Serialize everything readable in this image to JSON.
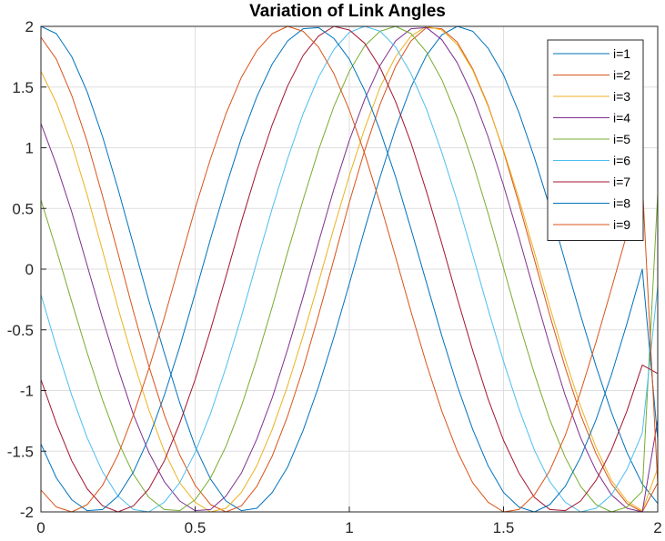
{
  "chart_data": {
    "type": "line",
    "title": "Variation of Link Angles",
    "xlabel": "",
    "ylabel": "",
    "xlim": [
      0,
      2
    ],
    "ylim": [
      -2,
      2
    ],
    "x_ticks": [
      0,
      0.5,
      1,
      1.5,
      2
    ],
    "x_tick_labels": [
      "0",
      "0.5",
      "1",
      "1.5",
      "2"
    ],
    "y_ticks": [
      2,
      1.5,
      1,
      0.5,
      0,
      -0.5,
      -1,
      -1.5,
      -2
    ],
    "y_tick_labels": [
      "2",
      "1.5",
      "1",
      "0.5",
      "0",
      "-0.5",
      "-1",
      "-1.5",
      "-2"
    ],
    "grid": true,
    "legend_location": "top-right",
    "x": [
      0,
      0.05,
      0.1,
      0.15,
      0.2,
      0.25,
      0.3,
      0.35,
      0.4,
      0.45,
      0.5,
      0.55,
      0.6,
      0.65,
      0.7,
      0.75,
      0.8,
      0.85,
      0.9,
      0.95,
      1.0,
      1.05,
      1.1,
      1.15,
      1.2,
      1.25,
      1.3,
      1.35,
      1.4,
      1.45,
      1.5,
      1.55,
      1.6,
      1.65,
      1.7,
      1.75,
      1.8,
      1.85,
      1.9,
      1.95,
      2.0
    ],
    "series": [
      {
        "name": "i=1",
        "color": "#0072BD",
        "values": [
          2.0,
          1.94,
          1.75,
          1.46,
          1.09,
          0.66,
          0.2,
          -0.26,
          -0.69,
          -1.1,
          -1.46,
          -1.73,
          -1.91,
          -1.99,
          -1.97,
          -1.84,
          -1.63,
          -1.33,
          -0.97,
          -0.56,
          -0.12,
          0.33,
          0.76,
          1.16,
          1.5,
          1.76,
          1.93,
          2.0,
          1.96,
          1.82,
          1.6,
          1.29,
          0.92,
          0.51,
          0.06,
          -0.38,
          -0.8,
          -1.18,
          -1.51,
          -1.77,
          -1.93
        ]
      },
      {
        "name": "i=2",
        "color": "#D95319",
        "values": [
          1.91,
          1.73,
          1.43,
          1.05,
          0.6,
          0.13,
          -0.35,
          -0.8,
          -1.2,
          -1.53,
          -1.78,
          -1.94,
          -2.0,
          -1.95,
          -1.79,
          -1.54,
          -1.21,
          -0.82,
          -0.38,
          0.08,
          0.55,
          0.98,
          1.36,
          1.67,
          1.88,
          1.99,
          1.98,
          1.87,
          1.65,
          1.35,
          0.97,
          0.54,
          0.08,
          -0.38,
          -0.81,
          -1.2,
          -1.52,
          -1.77,
          -1.93,
          -2.0,
          -1.76
        ]
      },
      {
        "name": "i=3",
        "color": "#EDB120",
        "values": [
          1.63,
          1.37,
          1.03,
          0.61,
          0.15,
          -0.32,
          -0.76,
          -1.16,
          -1.5,
          -1.76,
          -1.92,
          -2.0,
          -1.97,
          -1.84,
          -1.62,
          -1.32,
          -0.96,
          -0.55,
          -0.11,
          0.34,
          0.77,
          1.16,
          1.5,
          1.75,
          1.92,
          2.0,
          1.97,
          1.85,
          1.64,
          1.34,
          0.98,
          0.58,
          0.14,
          -0.31,
          -0.74,
          -1.13,
          -1.47,
          -1.74,
          -1.91,
          -1.99,
          -1.64
        ]
      },
      {
        "name": "i=4",
        "color": "#7E2F8E",
        "values": [
          1.2,
          0.86,
          0.47,
          0.03,
          -0.41,
          -0.82,
          -1.2,
          -1.51,
          -1.75,
          -1.91,
          -1.99,
          -1.98,
          -1.87,
          -1.68,
          -1.4,
          -1.06,
          -0.66,
          -0.23,
          0.22,
          0.66,
          1.06,
          1.4,
          1.68,
          1.88,
          1.98,
          1.99,
          1.89,
          1.7,
          1.43,
          1.09,
          0.69,
          0.26,
          -0.19,
          -0.63,
          -1.04,
          -1.39,
          -1.66,
          -1.86,
          -1.97,
          -2.0,
          -1.24
        ]
      },
      {
        "name": "i=5",
        "color": "#77AC30",
        "values": [
          0.57,
          0.16,
          -0.27,
          -0.69,
          -1.08,
          -1.42,
          -1.69,
          -1.88,
          -1.98,
          -1.99,
          -1.9,
          -1.72,
          -1.46,
          -1.13,
          -0.74,
          -0.31,
          0.14,
          0.57,
          0.98,
          1.34,
          1.63,
          1.84,
          1.96,
          2.0,
          1.94,
          1.79,
          1.56,
          1.25,
          0.88,
          0.46,
          0.01,
          -0.44,
          -0.86,
          -1.24,
          -1.55,
          -1.79,
          -1.94,
          -2.0,
          -1.96,
          -1.83,
          0.62
        ]
      },
      {
        "name": "i=6",
        "color": "#4DBEEE",
        "values": [
          -0.21,
          -0.64,
          -1.04,
          -1.39,
          -1.67,
          -1.87,
          -1.98,
          -2.0,
          -1.92,
          -1.76,
          -1.51,
          -1.19,
          -0.81,
          -0.39,
          0.06,
          0.5,
          0.91,
          1.28,
          1.58,
          1.81,
          1.95,
          2.0,
          1.96,
          1.83,
          1.61,
          1.32,
          0.96,
          0.56,
          0.12,
          -0.33,
          -0.76,
          -1.15,
          -1.49,
          -1.75,
          -1.92,
          -2.0,
          -1.97,
          -1.86,
          -1.65,
          -1.35,
          -0.14
        ]
      },
      {
        "name": "i=7",
        "color": "#A2142F",
        "values": [
          -0.91,
          -1.27,
          -1.58,
          -1.81,
          -1.95,
          -2.0,
          -1.95,
          -1.81,
          -1.58,
          -1.27,
          -0.91,
          -0.5,
          -0.06,
          0.39,
          0.81,
          1.19,
          1.51,
          1.76,
          1.92,
          2.0,
          1.97,
          1.86,
          1.66,
          1.38,
          1.04,
          0.64,
          0.21,
          -0.24,
          -0.67,
          -1.07,
          -1.41,
          -1.68,
          -1.88,
          -1.98,
          -1.99,
          -1.91,
          -1.74,
          -1.49,
          -1.17,
          -0.79,
          -0.86
        ]
      },
      {
        "name": "i=8",
        "color": "#0072BD",
        "values": [
          -1.44,
          -1.72,
          -1.9,
          -1.99,
          -1.98,
          -1.87,
          -1.67,
          -1.39,
          -1.04,
          -0.64,
          -0.2,
          0.25,
          0.68,
          1.08,
          1.42,
          1.69,
          1.88,
          1.98,
          1.99,
          1.9,
          1.73,
          1.47,
          1.14,
          0.76,
          0.33,
          -0.11,
          -0.55,
          -0.96,
          -1.32,
          -1.62,
          -1.84,
          -1.96,
          -2.0,
          -1.94,
          -1.79,
          -1.55,
          -1.24,
          -0.87,
          -0.45,
          0.0,
          -1.4
        ]
      },
      {
        "name": "i=9",
        "color": "#D95319",
        "values": [
          -1.82,
          -1.96,
          -2.0,
          -1.94,
          -1.78,
          -1.53,
          -1.2,
          -0.82,
          -0.4,
          0.05,
          0.5,
          0.91,
          1.28,
          1.58,
          1.8,
          1.94,
          2.0,
          1.96,
          1.83,
          1.61,
          1.31,
          0.95,
          0.54,
          0.1,
          -0.35,
          -0.78,
          -1.17,
          -1.5,
          -1.76,
          -1.92,
          -2.0,
          -1.98,
          -1.86,
          -1.66,
          -1.37,
          -1.01,
          -0.6,
          -0.16,
          0.29,
          0.72,
          -1.77
        ]
      }
    ]
  }
}
